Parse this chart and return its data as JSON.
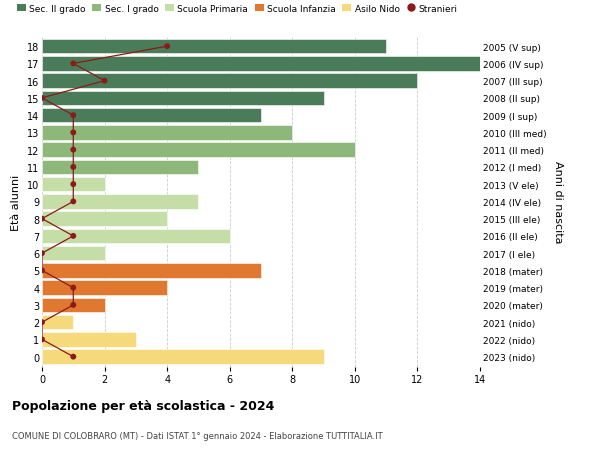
{
  "ages": [
    18,
    17,
    16,
    15,
    14,
    13,
    12,
    11,
    10,
    9,
    8,
    7,
    6,
    5,
    4,
    3,
    2,
    1,
    0
  ],
  "right_labels": [
    "2005 (V sup)",
    "2006 (IV sup)",
    "2007 (III sup)",
    "2008 (II sup)",
    "2009 (I sup)",
    "2010 (III med)",
    "2011 (II med)",
    "2012 (I med)",
    "2013 (V ele)",
    "2014 (IV ele)",
    "2015 (III ele)",
    "2016 (II ele)",
    "2017 (I ele)",
    "2018 (mater)",
    "2019 (mater)",
    "2020 (mater)",
    "2021 (nido)",
    "2022 (nido)",
    "2023 (nido)"
  ],
  "bar_values": [
    11,
    14,
    12,
    9,
    7,
    8,
    10,
    5,
    2,
    5,
    4,
    6,
    2,
    7,
    4,
    2,
    1,
    3,
    9
  ],
  "bar_colors": [
    "#4a7c59",
    "#4a7c59",
    "#4a7c59",
    "#4a7c59",
    "#4a7c59",
    "#8db87a",
    "#8db87a",
    "#8db87a",
    "#c5dea8",
    "#c5dea8",
    "#c5dea8",
    "#c5dea8",
    "#c5dea8",
    "#e07830",
    "#e07830",
    "#e07830",
    "#f5d97a",
    "#f5d97a",
    "#f5d97a"
  ],
  "stranieri_values": [
    4,
    1,
    2,
    0,
    1,
    1,
    1,
    1,
    1,
    1,
    0,
    1,
    0,
    0,
    1,
    1,
    0,
    0,
    1
  ],
  "stranieri_color": "#8b1a1a",
  "legend_items": [
    {
      "label": "Sec. II grado",
      "color": "#4a7c59"
    },
    {
      "label": "Sec. I grado",
      "color": "#8db87a"
    },
    {
      "label": "Scuola Primaria",
      "color": "#c5dea8"
    },
    {
      "label": "Scuola Infanzia",
      "color": "#e07830"
    },
    {
      "label": "Asilo Nido",
      "color": "#f5d97a"
    },
    {
      "label": "Stranieri",
      "color": "#8b1a1a"
    }
  ],
  "ylabel_left": "Età alunni",
  "ylabel_right": "Anni di nascita",
  "title": "Popolazione per età scolastica - 2024",
  "subtitle": "COMUNE DI COLOBRARO (MT) - Dati ISTAT 1° gennaio 2024 - Elaborazione TUTTITALIA.IT",
  "xlim": [
    0,
    14
  ],
  "xticks": [
    0,
    2,
    4,
    6,
    8,
    10,
    12,
    14
  ],
  "background_color": "#ffffff",
  "grid_color": "#cccccc",
  "bar_height": 0.85
}
